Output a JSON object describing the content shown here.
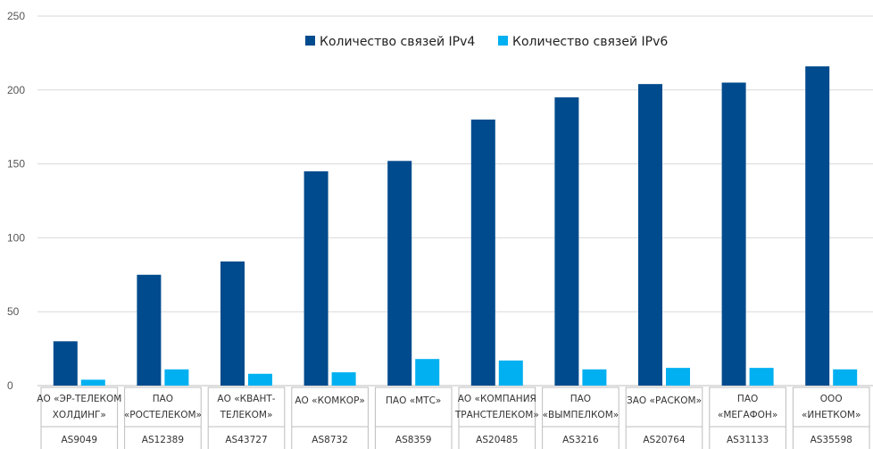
{
  "chart_data": {
    "type": "bar",
    "title": "",
    "xlabel": "",
    "ylabel": "",
    "ylim": [
      0,
      250
    ],
    "yticks": [
      0,
      50,
      100,
      150,
      200,
      250
    ],
    "grid": true,
    "legend_position": "top",
    "categories": [
      {
        "name_lines": [
          "АО «ЭР-ТЕЛЕКОМ",
          "ХОЛДИНГ»"
        ],
        "as": "AS9049"
      },
      {
        "name_lines": [
          "ПАО",
          "«РОСТЕЛЕКОМ»"
        ],
        "as": "AS12389"
      },
      {
        "name_lines": [
          "АО «КВАНТ-",
          "ТЕЛЕКОМ»"
        ],
        "as": "AS43727"
      },
      {
        "name_lines": [
          "АО «КОМКОР»"
        ],
        "as": "AS8732"
      },
      {
        "name_lines": [
          "ПАО «МТС»"
        ],
        "as": "AS8359"
      },
      {
        "name_lines": [
          "АО «КОМПАНИЯ",
          "ТРАНСТЕЛЕКОМ»"
        ],
        "as": "AS20485"
      },
      {
        "name_lines": [
          "ПАО",
          "«ВЫМПЕЛКОМ»"
        ],
        "as": "AS3216"
      },
      {
        "name_lines": [
          "ЗАО «РАСКОМ»"
        ],
        "as": "AS20764"
      },
      {
        "name_lines": [
          "ПАО",
          "«МЕГАФОН»"
        ],
        "as": "AS31133"
      },
      {
        "name_lines": [
          "ООО",
          "«ИНЕТКОМ»"
        ],
        "as": "AS35598"
      }
    ],
    "series": [
      {
        "name": "Количество связей IPv4",
        "color": "#004b8d",
        "values": [
          30,
          75,
          84,
          145,
          152,
          180,
          195,
          204,
          205,
          216
        ]
      },
      {
        "name": "Количество связей IPv6",
        "color": "#00b0f0",
        "values": [
          4,
          11,
          8,
          9,
          18,
          17,
          11,
          12,
          12,
          11
        ]
      }
    ]
  }
}
